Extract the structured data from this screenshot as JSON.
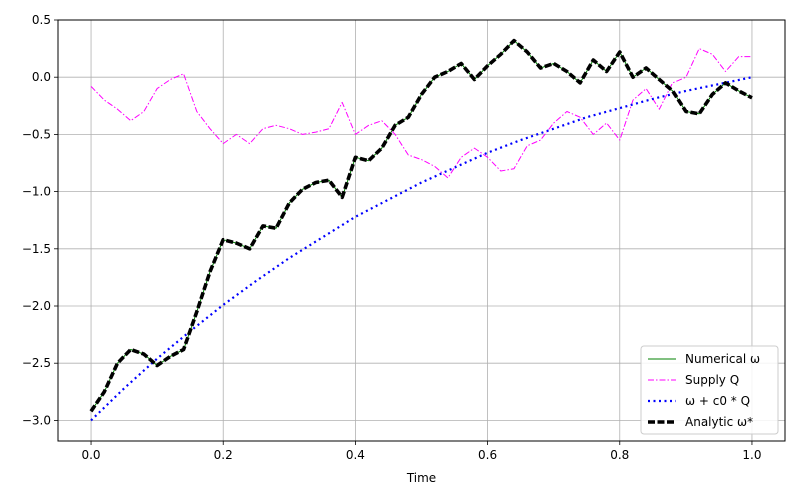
{
  "chart_data": {
    "type": "line",
    "title": "",
    "xlabel": "Time",
    "ylabel": "",
    "xlim": [
      -0.05,
      1.05
    ],
    "ylim": [
      -3.18,
      0.5
    ],
    "xticks": [
      0.0,
      0.2,
      0.4,
      0.6,
      0.8,
      1.0
    ],
    "xtick_labels": [
      "0.0",
      "0.2",
      "0.4",
      "0.6",
      "0.8",
      "1.0"
    ],
    "yticks": [
      -3.0,
      -2.5,
      -2.0,
      -1.5,
      -1.0,
      -0.5,
      0.0,
      0.5
    ],
    "ytick_labels": [
      "−3.0",
      "−2.5",
      "−2.0",
      "−1.5",
      "−1.0",
      "−0.5",
      "0.0",
      "0.5"
    ],
    "grid": true,
    "legend_position": "lower-right",
    "series": [
      {
        "name": "Numerical ω",
        "color": "#008000",
        "style": "solid",
        "x": [
          0.0,
          0.02,
          0.04,
          0.06,
          0.08,
          0.1,
          0.12,
          0.14,
          0.16,
          0.18,
          0.2,
          0.22,
          0.24,
          0.26,
          0.28,
          0.3,
          0.32,
          0.34,
          0.36,
          0.38,
          0.4,
          0.42,
          0.44,
          0.46,
          0.48,
          0.5,
          0.52,
          0.54,
          0.56,
          0.58,
          0.6,
          0.62,
          0.64,
          0.66,
          0.68,
          0.7,
          0.72,
          0.74,
          0.76,
          0.78,
          0.8,
          0.82,
          0.84,
          0.86,
          0.88,
          0.9,
          0.92,
          0.94,
          0.96,
          0.98,
          1.0
        ],
        "y": [
          -2.92,
          -2.75,
          -2.5,
          -2.38,
          -2.42,
          -2.52,
          -2.44,
          -2.38,
          -2.05,
          -1.7,
          -1.42,
          -1.45,
          -1.5,
          -1.3,
          -1.32,
          -1.1,
          -0.98,
          -0.92,
          -0.9,
          -1.05,
          -0.7,
          -0.73,
          -0.62,
          -0.42,
          -0.35,
          -0.15,
          0.0,
          0.05,
          0.12,
          -0.02,
          0.1,
          0.2,
          0.32,
          0.22,
          0.08,
          0.12,
          0.05,
          -0.05,
          0.15,
          0.05,
          0.22,
          0.0,
          0.08,
          -0.02,
          -0.12,
          -0.3,
          -0.32,
          -0.15,
          -0.05,
          -0.12,
          -0.18
        ]
      },
      {
        "name": "Supply Q",
        "color": "#ff00ff",
        "style": "dashdot",
        "x": [
          0.0,
          0.02,
          0.04,
          0.06,
          0.08,
          0.1,
          0.12,
          0.14,
          0.16,
          0.18,
          0.2,
          0.22,
          0.24,
          0.26,
          0.28,
          0.3,
          0.32,
          0.34,
          0.36,
          0.38,
          0.4,
          0.42,
          0.44,
          0.46,
          0.48,
          0.5,
          0.52,
          0.54,
          0.56,
          0.58,
          0.6,
          0.62,
          0.64,
          0.66,
          0.68,
          0.7,
          0.72,
          0.74,
          0.76,
          0.78,
          0.8,
          0.82,
          0.84,
          0.86,
          0.88,
          0.9,
          0.92,
          0.94,
          0.96,
          0.98,
          1.0
        ],
        "y": [
          -0.08,
          -0.2,
          -0.28,
          -0.38,
          -0.3,
          -0.1,
          -0.02,
          0.03,
          -0.3,
          -0.45,
          -0.58,
          -0.5,
          -0.58,
          -0.45,
          -0.42,
          -0.45,
          -0.5,
          -0.48,
          -0.45,
          -0.22,
          -0.5,
          -0.42,
          -0.38,
          -0.5,
          -0.68,
          -0.72,
          -0.78,
          -0.88,
          -0.7,
          -0.62,
          -0.7,
          -0.82,
          -0.8,
          -0.6,
          -0.55,
          -0.4,
          -0.3,
          -0.35,
          -0.5,
          -0.4,
          -0.55,
          -0.2,
          -0.1,
          -0.28,
          -0.05,
          0.0,
          0.25,
          0.2,
          0.05,
          0.18,
          0.18
        ]
      },
      {
        "name": "ω + c0 * Q",
        "color": "#0000ff",
        "style": "dotted",
        "x": [
          0.0,
          0.05,
          0.1,
          0.15,
          0.2,
          0.25,
          0.3,
          0.35,
          0.4,
          0.45,
          0.5,
          0.55,
          0.6,
          0.65,
          0.7,
          0.75,
          0.8,
          0.85,
          0.9,
          0.95,
          1.0
        ],
        "y": [
          -3.0,
          -2.72,
          -2.46,
          -2.22,
          -1.99,
          -1.78,
          -1.58,
          -1.4,
          -1.22,
          -1.07,
          -0.92,
          -0.79,
          -0.66,
          -0.55,
          -0.45,
          -0.35,
          -0.27,
          -0.19,
          -0.12,
          -0.06,
          0.0
        ]
      },
      {
        "name": "Analytic ω*",
        "color": "#000000",
        "style": "dashed",
        "x": [
          0.0,
          0.02,
          0.04,
          0.06,
          0.08,
          0.1,
          0.12,
          0.14,
          0.16,
          0.18,
          0.2,
          0.22,
          0.24,
          0.26,
          0.28,
          0.3,
          0.32,
          0.34,
          0.36,
          0.38,
          0.4,
          0.42,
          0.44,
          0.46,
          0.48,
          0.5,
          0.52,
          0.54,
          0.56,
          0.58,
          0.6,
          0.62,
          0.64,
          0.66,
          0.68,
          0.7,
          0.72,
          0.74,
          0.76,
          0.78,
          0.8,
          0.82,
          0.84,
          0.86,
          0.88,
          0.9,
          0.92,
          0.94,
          0.96,
          0.98,
          1.0
        ],
        "y": [
          -2.92,
          -2.75,
          -2.5,
          -2.38,
          -2.42,
          -2.52,
          -2.44,
          -2.38,
          -2.05,
          -1.7,
          -1.42,
          -1.45,
          -1.5,
          -1.3,
          -1.32,
          -1.1,
          -0.98,
          -0.92,
          -0.9,
          -1.05,
          -0.7,
          -0.73,
          -0.62,
          -0.42,
          -0.35,
          -0.15,
          0.0,
          0.05,
          0.12,
          -0.02,
          0.1,
          0.2,
          0.32,
          0.22,
          0.08,
          0.12,
          0.05,
          -0.05,
          0.15,
          0.05,
          0.22,
          0.0,
          0.08,
          -0.02,
          -0.12,
          -0.3,
          -0.32,
          -0.15,
          -0.05,
          -0.12,
          -0.18
        ]
      }
    ]
  }
}
